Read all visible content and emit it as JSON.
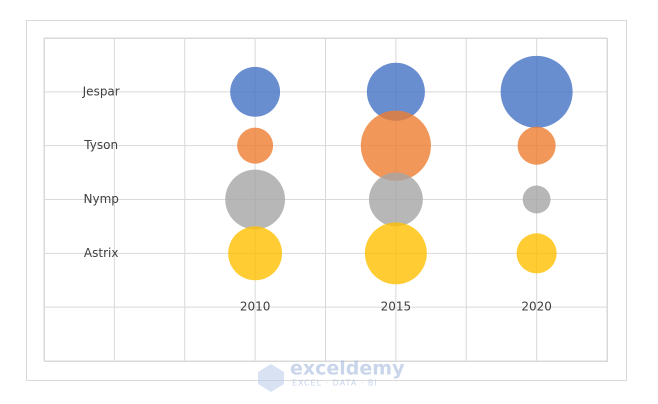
{
  "chart_data": {
    "type": "bubble",
    "categories": [
      "2010",
      "2015",
      "2020"
    ],
    "x": [
      1.5,
      2.5,
      3.5
    ],
    "xlim": [
      0,
      4
    ],
    "xticks": [
      0,
      0.5,
      1,
      1.5,
      2,
      2.5,
      3,
      3.5,
      4
    ],
    "ylim": [
      0,
      6
    ],
    "yticks": [
      0,
      1,
      2,
      3,
      4,
      5,
      6
    ],
    "grid": true,
    "tick_labels": false,
    "series": [
      {
        "name": "Jespar",
        "color": "#4472c4",
        "values": [
          5,
          5,
          5
        ],
        "sizes": [
          48,
          65,
          100
        ]
      },
      {
        "name": "Tyson",
        "color": "#ed7d31",
        "values": [
          4,
          4,
          4
        ],
        "sizes": [
          25,
          95,
          28
        ]
      },
      {
        "name": "Nymp",
        "color": "#a5a5a5",
        "values": [
          3,
          3,
          3
        ],
        "sizes": [
          69,
          56,
          15
        ]
      },
      {
        "name": "Astrix",
        "color": "#ffc000",
        "values": [
          2,
          2,
          2
        ],
        "sizes": [
          56,
          74,
          31
        ]
      }
    ]
  },
  "watermark": {
    "name": "exceldemy",
    "tagline": "EXCEL · DATA · BI"
  }
}
